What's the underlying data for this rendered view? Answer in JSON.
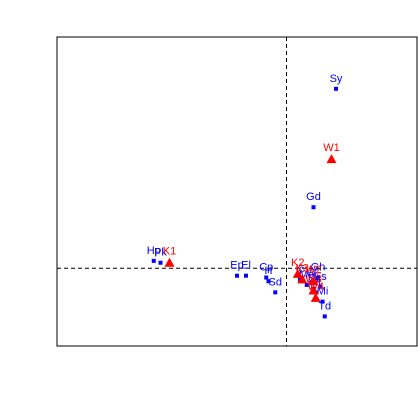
{
  "chart_data": {
    "type": "scatter",
    "title": "",
    "xlabel": "",
    "ylabel": "",
    "xlim": [
      -1.02,
      0.58
    ],
    "ylim": [
      -0.42,
      1.25
    ],
    "grid": false,
    "reference_lines": {
      "x": 0,
      "y": 0
    },
    "colors": {
      "species": "#0000ff",
      "sites": "#ff0000",
      "axes": "#000000"
    },
    "series": [
      {
        "marker": "square",
        "color": "#0000ff",
        "points": [
          {
            "label": "Sy",
            "x": 0.22,
            "y": 0.97
          },
          {
            "label": "Gd",
            "x": 0.12,
            "y": 0.33
          },
          {
            "label": "Hp",
            "x": -0.59,
            "y": 0.04
          },
          {
            "label": "Pk",
            "x": -0.56,
            "y": 0.03
          },
          {
            "label": "Ep",
            "x": -0.22,
            "y": -0.04
          },
          {
            "label": "El",
            "x": -0.18,
            "y": -0.04
          },
          {
            "label": "Cp",
            "x": -0.09,
            "y": -0.05
          },
          {
            "label": "H",
            "x": -0.08,
            "y": -0.07
          },
          {
            "label": "Sd",
            "x": -0.05,
            "y": -0.13
          },
          {
            "label": "Ic",
            "x": 0.06,
            "y": -0.06
          },
          {
            "label": "Gh",
            "x": 0.14,
            "y": -0.05
          },
          {
            "label": "Mi",
            "x": 0.16,
            "y": -0.18
          },
          {
            "label": "Td",
            "x": 0.17,
            "y": -0.26
          },
          {
            "label": "Ma",
            "x": 0.09,
            "y": -0.09
          },
          {
            "label": "Ct",
            "x": 0.12,
            "y": -0.11
          },
          {
            "label": "W",
            "x": 0.11,
            "y": -0.08
          },
          {
            "label": "Es",
            "x": 0.15,
            "y": -0.1
          },
          {
            "label": "Nt",
            "x": 0.13,
            "y": -0.13
          }
        ]
      },
      {
        "marker": "triangle",
        "color": "#ff0000",
        "points": [
          {
            "label": "W1",
            "x": 0.2,
            "y": 0.59
          },
          {
            "label": "K1",
            "x": -0.52,
            "y": 0.03
          },
          {
            "label": "K2",
            "x": 0.05,
            "y": -0.03
          },
          {
            "label": "K3",
            "x": 0.07,
            "y": -0.06
          },
          {
            "label": "W2",
            "x": 0.12,
            "y": -0.07
          },
          {
            "label": "W3",
            "x": 0.12,
            "y": -0.12
          },
          {
            "label": "W4",
            "x": 0.13,
            "y": -0.16
          }
        ]
      }
    ]
  }
}
